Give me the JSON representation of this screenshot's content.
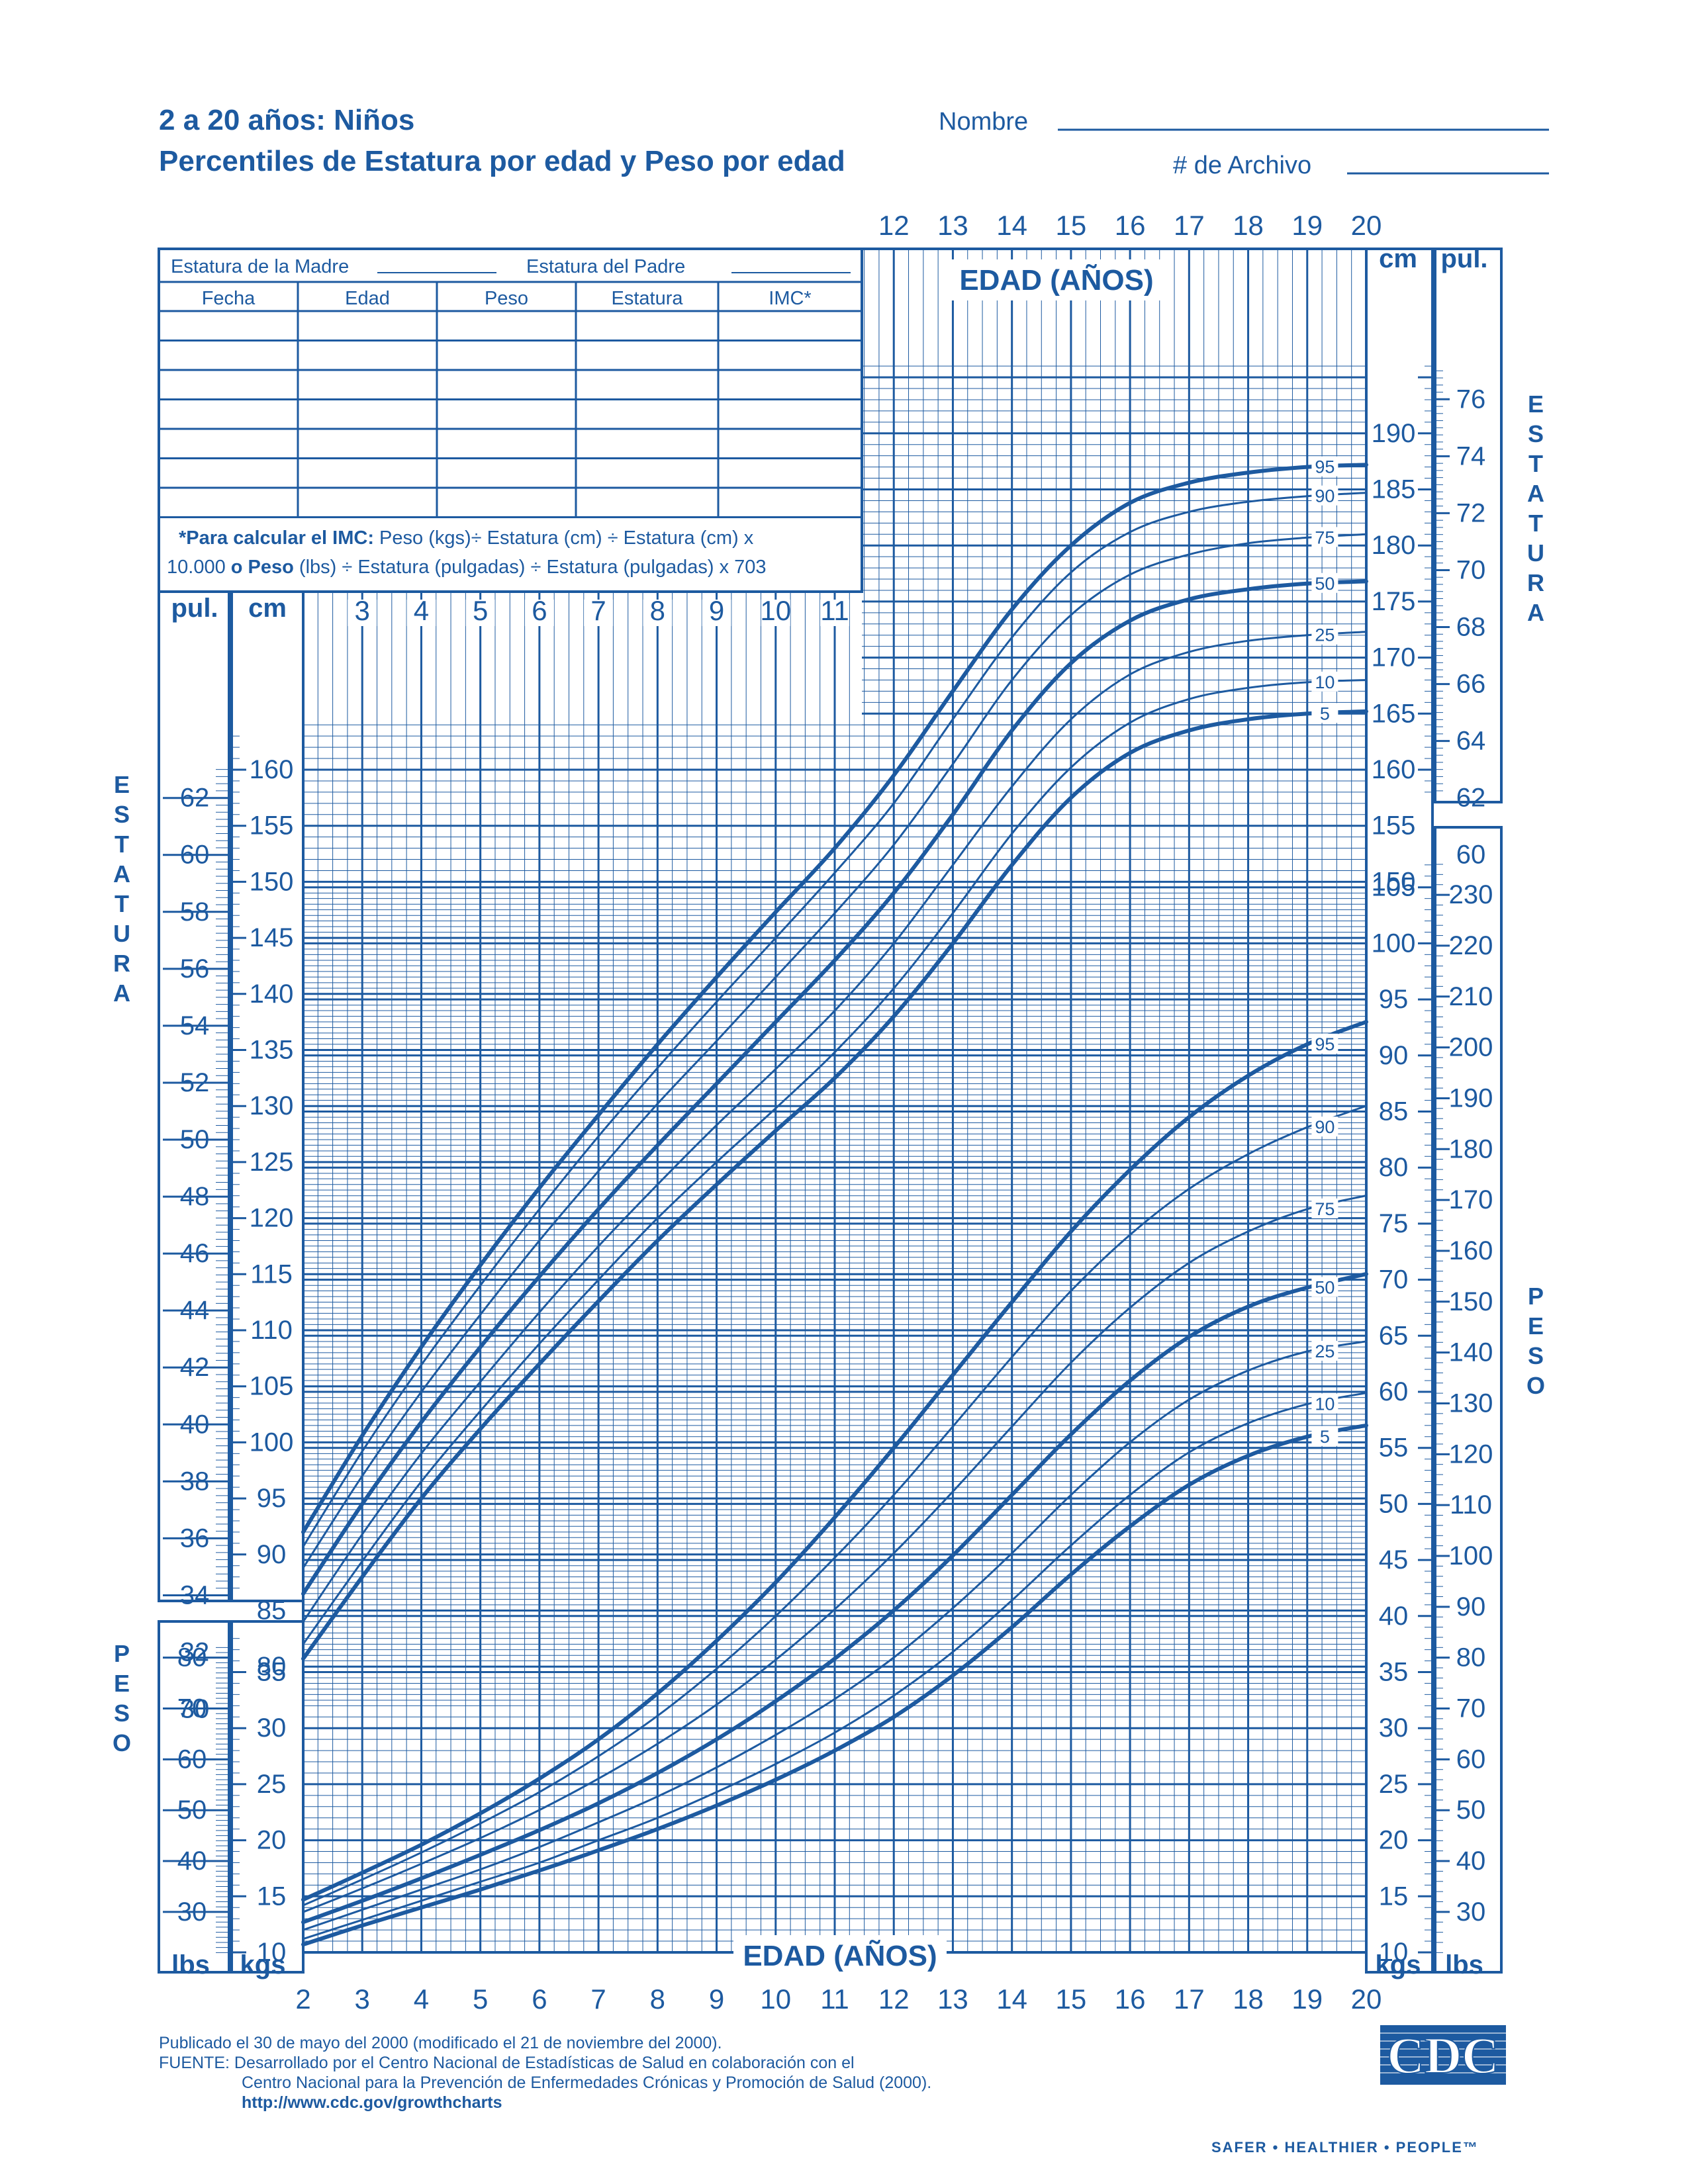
{
  "header": {
    "title": "2 a 20 años: Niños",
    "subtitle": "Percentiles de Estatura por edad y Peso por edad",
    "name_label": "Nombre",
    "record_label": "# de Archivo"
  },
  "record_table": {
    "mother_label": "Estatura de la Madre",
    "father_label": "Estatura del Padre",
    "columns": [
      "Fecha",
      "Edad",
      "Peso",
      "Estatura",
      "IMC*"
    ],
    "empty_rows": 7,
    "note_bold": "*Para calcular el IMC:",
    "note_line1": "Peso (kgs)÷ Estatura (cm) ÷ Estatura (cm) x",
    "note_line2_start": "10.000",
    "note_line2_bold": "o Peso",
    "note_line2_rest": "(lbs) ÷ Estatura (pulgadas) ÷ Estatura (pulgadas) x 703"
  },
  "labels": {
    "age_axis": "EDAD (AÑOS)",
    "stature_vertical": "ESTATURA",
    "weight_vertical": "PESO",
    "cm": "cm",
    "in": "pul.",
    "kg": "kgs",
    "lb": "lbs"
  },
  "chart_data": {
    "type": "line",
    "x_label": "EDAD (AÑOS)",
    "x_range": [
      2,
      20
    ],
    "x_ticks": [
      2,
      3,
      4,
      5,
      6,
      7,
      8,
      9,
      10,
      11,
      12,
      13,
      14,
      15,
      16,
      17,
      18,
      19,
      20
    ],
    "x_ticks_top": [
      12,
      13,
      14,
      15,
      16,
      17,
      18,
      19,
      20
    ],
    "x_ticks_mid": [
      3,
      4,
      5,
      6,
      7,
      8,
      9,
      10,
      11
    ],
    "x_points": [
      2,
      3,
      4,
      5,
      6,
      7,
      8,
      9,
      10,
      11,
      12,
      13,
      14,
      15,
      16,
      17,
      18,
      19,
      20
    ],
    "stature": {
      "y_label": "ESTATURA",
      "unit_left": "cm",
      "unit_right": "cm",
      "cm_range": [
        77,
        200
      ],
      "cm_ticks_left": [
        80,
        85,
        90,
        95,
        100,
        105,
        110,
        115,
        120,
        125,
        130,
        135,
        140,
        145,
        150,
        155,
        160
      ],
      "cm_ticks_right": [
        150,
        155,
        160,
        165,
        170,
        175,
        180,
        185,
        190
      ],
      "in_ticks_left": [
        30,
        32,
        34,
        36,
        38,
        40,
        42,
        44,
        46,
        48,
        50,
        52,
        54,
        56,
        58,
        60,
        62
      ],
      "in_ticks_right": [
        60,
        62,
        64,
        66,
        68,
        70,
        72,
        74,
        76
      ],
      "series": [
        {
          "name": "5",
          "values": [
            80.7,
            88.0,
            95.0,
            101.2,
            107.0,
            112.6,
            118.0,
            123.0,
            127.8,
            132.5,
            138.0,
            144.5,
            151.5,
            157.5,
            161.5,
            163.5,
            164.5,
            165.0,
            165.2
          ]
        },
        {
          "name": "10",
          "values": [
            82.0,
            89.4,
            96.5,
            102.8,
            108.8,
            114.5,
            120.0,
            125.0,
            129.8,
            134.8,
            140.5,
            147.2,
            154.3,
            160.2,
            164.2,
            166.3,
            167.3,
            167.8,
            168.0
          ]
        },
        {
          "name": "25",
          "values": [
            84.0,
            91.8,
            99.0,
            105.4,
            111.6,
            117.5,
            123.0,
            128.3,
            133.3,
            138.5,
            144.5,
            151.5,
            158.5,
            164.5,
            168.5,
            170.5,
            171.5,
            172.0,
            172.3
          ]
        },
        {
          "name": "50",
          "values": [
            86.5,
            94.5,
            101.8,
            108.5,
            114.8,
            120.8,
            126.5,
            132.0,
            137.5,
            143.0,
            149.0,
            156.0,
            163.5,
            169.5,
            173.3,
            175.2,
            176.1,
            176.6,
            176.8
          ]
        },
        {
          "name": "75",
          "values": [
            88.8,
            97.0,
            104.5,
            111.4,
            118.0,
            124.2,
            130.2,
            135.8,
            141.5,
            147.2,
            153.3,
            160.5,
            168.0,
            173.8,
            177.4,
            179.2,
            180.2,
            180.7,
            181.0
          ]
        },
        {
          "name": "90",
          "values": [
            90.7,
            99.2,
            106.9,
            114.0,
            120.8,
            127.3,
            133.4,
            139.3,
            145.0,
            150.8,
            157.0,
            164.5,
            171.8,
            177.6,
            181.2,
            183.0,
            183.9,
            184.4,
            184.7
          ]
        },
        {
          "name": "95",
          "values": [
            92.0,
            100.6,
            108.5,
            115.8,
            122.7,
            129.2,
            135.5,
            141.5,
            147.3,
            153.0,
            159.5,
            167.0,
            174.3,
            180.0,
            183.8,
            185.6,
            186.5,
            187.0,
            187.2
          ]
        }
      ]
    },
    "weight": {
      "y_label": "PESO",
      "unit_left": "kgs",
      "unit_right": "kgs",
      "kg_range": [
        10,
        105
      ],
      "kg_ticks_left": [
        10,
        15,
        20,
        25,
        30,
        35
      ],
      "kg_ticks_right": [
        10,
        15,
        20,
        25,
        30,
        35,
        40,
        45,
        50,
        55,
        60,
        65,
        70,
        75,
        80,
        85,
        90,
        95,
        100,
        105
      ],
      "lb_ticks_left": [
        30,
        40,
        50,
        60,
        70,
        80
      ],
      "lb_ticks_right": [
        30,
        40,
        50,
        60,
        70,
        80,
        90,
        100,
        110,
        120,
        130,
        140,
        150,
        160,
        170,
        180,
        190,
        200,
        210,
        220,
        230
      ],
      "series": [
        {
          "name": "5",
          "values": [
            10.7,
            12.4,
            14.0,
            15.6,
            17.3,
            19.1,
            21.0,
            23.1,
            25.4,
            28.0,
            31.0,
            34.7,
            39.0,
            43.7,
            48.0,
            51.7,
            54.3,
            56.0,
            57.0
          ]
        },
        {
          "name": "10",
          "values": [
            11.2,
            12.9,
            14.6,
            16.3,
            18.0,
            20.0,
            22.0,
            24.3,
            26.8,
            29.6,
            32.9,
            36.8,
            41.4,
            46.3,
            50.8,
            54.6,
            57.2,
            58.9,
            59.9
          ]
        },
        {
          "name": "25",
          "values": [
            12.0,
            13.8,
            15.6,
            17.4,
            19.4,
            21.6,
            23.9,
            26.5,
            29.4,
            32.6,
            36.3,
            40.7,
            45.6,
            50.8,
            55.5,
            59.3,
            61.9,
            63.6,
            64.5
          ]
        },
        {
          "name": "50",
          "values": [
            12.7,
            14.6,
            16.6,
            18.7,
            20.9,
            23.3,
            26.0,
            29.0,
            32.4,
            36.2,
            40.5,
            45.4,
            50.8,
            56.2,
            61.0,
            64.9,
            67.6,
            69.3,
            70.5
          ]
        },
        {
          "name": "75",
          "values": [
            13.6,
            15.7,
            17.9,
            20.2,
            22.7,
            25.5,
            28.6,
            32.1,
            36.1,
            40.6,
            45.6,
            51.1,
            56.9,
            62.6,
            67.5,
            71.5,
            74.3,
            76.3,
            77.5
          ]
        },
        {
          "name": "90",
          "values": [
            14.2,
            16.5,
            18.9,
            21.5,
            24.3,
            27.5,
            31.1,
            35.3,
            40.0,
            45.2,
            50.8,
            56.9,
            63.1,
            69.0,
            74.0,
            78.1,
            81.2,
            83.6,
            85.5
          ]
        },
        {
          "name": "95",
          "values": [
            14.7,
            17.1,
            19.6,
            22.4,
            25.5,
            29.0,
            33.1,
            37.8,
            43.0,
            48.8,
            55.0,
            61.5,
            68.0,
            74.3,
            79.8,
            84.5,
            88.2,
            91.0,
            93.0
          ]
        }
      ]
    }
  },
  "footer": {
    "published": "Publicado el 30 de mayo del 2000 (modificado el 21 de noviembre del 2000).",
    "source1": "FUENTE: Desarrollado por el Centro Nacional de Estadísticas de Salud en colaboración con el",
    "source2": "Centro Nacional para la Prevención de Enfermedades Crónicas y Promoción de Salud (2000).",
    "url": "http://www.cdc.gov/growthcharts",
    "logo_text": "CDC",
    "tagline": "SAFER • HEALTHIER • PEOPLE™"
  },
  "colors": {
    "primary": "#1d5aa0",
    "background": "#ffffff"
  }
}
